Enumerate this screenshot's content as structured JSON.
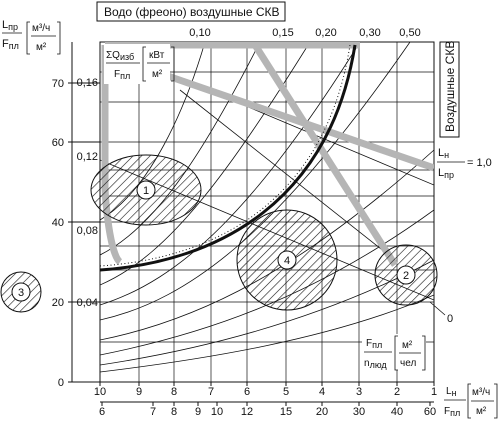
{
  "header": {
    "top_title": "Водо (фреоно) воздушные СКВ",
    "side_title": "Воздушные СКВ"
  },
  "y_axis_left": {
    "label_top": "L",
    "label_top_sub": "пр",
    "label_bottom": "F",
    "label_bottom_sub": "пл",
    "unit_top": "м³/ч",
    "unit_bottom": "м²",
    "ticks": [
      "0",
      "20",
      "40",
      "60",
      "70"
    ]
  },
  "y_axis_inner": {
    "label_top": "ΣQ",
    "label_top_sub": "изб",
    "label_bottom": "F",
    "label_bottom_sub": "пл",
    "unit_top": "кВт",
    "unit_bottom": "м²",
    "ticks": [
      "0,04",
      "0,08",
      "0,12",
      "0,16"
    ]
  },
  "x_axis_top": {
    "ticks": [
      "0,10",
      "0,15",
      "0,20",
      "0,30",
      "0,50"
    ]
  },
  "x_axis_bottom1": {
    "ticks": [
      "10",
      "9",
      "8",
      "7",
      "6",
      "5",
      "4",
      "3",
      "2",
      "1"
    ],
    "label_top": "L",
    "label_top_sub": "н",
    "label_bottom": "F",
    "label_bottom_sub": "пл",
    "unit_top": "м³/ч",
    "unit_bottom": "м²"
  },
  "x_axis_bottom2": {
    "ticks": [
      "6",
      "7",
      "8",
      "9",
      "10",
      "12",
      "15",
      "20",
      "30",
      "40",
      "60"
    ]
  },
  "ratio_label": {
    "top": "L",
    "top_sub": "н",
    "bottom": "L",
    "bottom_sub": "пр",
    "value": "= 1,0"
  },
  "people_label": {
    "top": "F",
    "top_sub": "пл",
    "bottom": "n",
    "bottom_sub": "люд",
    "unit_top": "м²",
    "unit_bottom": "чел"
  },
  "zones": [
    {
      "id": "1"
    },
    {
      "id": "2"
    },
    {
      "id": "3"
    },
    {
      "id": "4"
    }
  ],
  "zero_label": "0"
}
